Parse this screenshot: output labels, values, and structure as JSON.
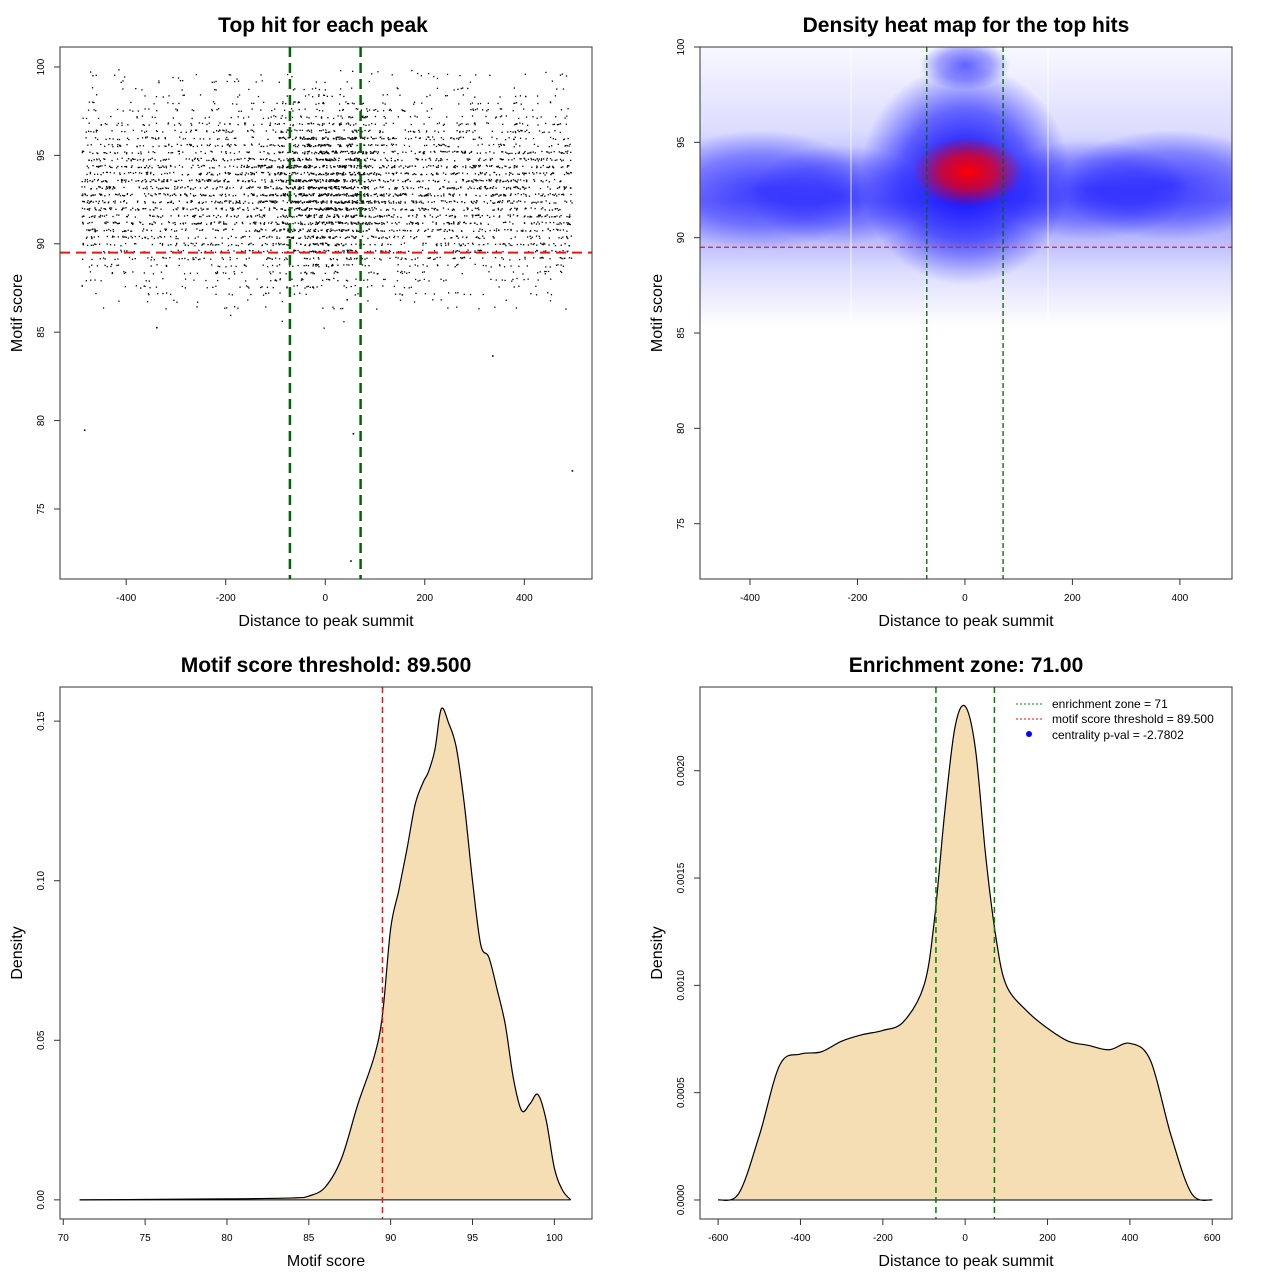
{
  "chart_data": [
    {
      "type": "scatter",
      "title": "Top hit for each peak",
      "xlabel": "Distance to peak summit",
      "ylabel": "Motif score",
      "xlim": [
        -533,
        536
      ],
      "ylim": [
        71.04,
        101.13
      ],
      "xticks": [
        -400,
        -200,
        0,
        200,
        400
      ],
      "yticks": [
        75,
        80,
        85,
        90,
        95,
        100
      ],
      "points_summary": {
        "x_range": [
          -490,
          495
        ],
        "y_center": 93,
        "y_spread": 2.8,
        "dense_center_x": 0
      },
      "outliers": [
        {
          "x": -485,
          "y": 79.5
        },
        {
          "x": 55,
          "y": 79.3
        },
        {
          "x": 495,
          "y": 77.2
        },
        {
          "x": 50,
          "y": 72.1
        },
        {
          "x": -340,
          "y": 85.3
        },
        {
          "x": 335,
          "y": 83.7
        }
      ],
      "vlines": [
        -71,
        71
      ],
      "hline": 89.5,
      "colors": {
        "points": "#000000",
        "vlines": "#006400",
        "hline": "#e31a1c"
      }
    },
    {
      "type": "heatmap",
      "title": "Density heat map for the top hits",
      "xlabel": "Distance to peak summit",
      "ylabel": "Motif score",
      "xlim": [
        -493,
        497
      ],
      "ylim": [
        72.1,
        100
      ],
      "xticks": [
        -400,
        -200,
        0,
        200,
        400
      ],
      "yticks": [
        75,
        80,
        85,
        90,
        95,
        100
      ],
      "peak": {
        "x": 5,
        "y": 93.5
      },
      "vlines": [
        -71,
        71
      ],
      "hline": 89.5,
      "colors": {
        "low": "#ffffff",
        "mid": "#0000ff",
        "high": "#ff0000",
        "vlines": "#006400",
        "hline": "#e31a1c"
      }
    },
    {
      "type": "area",
      "title": "Motif score threshold: 89.500",
      "xlabel": "Motif score",
      "ylabel": "Density",
      "xlim": [
        69.8,
        102.3
      ],
      "ylim": [
        -0.006,
        0.1607
      ],
      "xticks": [
        70,
        75,
        80,
        85,
        90,
        95,
        100
      ],
      "yticks": [
        "0.00",
        "0.05",
        "0.10",
        "0.15"
      ],
      "x": [
        71,
        80,
        84,
        85,
        86,
        87,
        88,
        89,
        89.5,
        90,
        90.5,
        91,
        91.5,
        92,
        92.3,
        92.7,
        93,
        93.2,
        93.5,
        94,
        94.5,
        95,
        95.5,
        96,
        96.5,
        97,
        97.5,
        98,
        98.5,
        99,
        99.5,
        100,
        100.5,
        101
      ],
      "y": [
        0,
        0.0003,
        0.0006,
        0.0012,
        0.004,
        0.013,
        0.03,
        0.045,
        0.058,
        0.085,
        0.097,
        0.11,
        0.124,
        0.131,
        0.134,
        0.141,
        0.152,
        0.154,
        0.15,
        0.142,
        0.124,
        0.1,
        0.08,
        0.076,
        0.066,
        0.055,
        0.038,
        0.028,
        0.03,
        0.033,
        0.025,
        0.01,
        0.003,
        0
      ],
      "vline": 89.5,
      "colors": {
        "fill": "#f5deb3",
        "line": "#000000",
        "vline": "#e31a1c"
      }
    },
    {
      "type": "area",
      "title": "Enrichment zone: 71.00",
      "xlabel": "Distance to peak summit",
      "ylabel": "Density",
      "xlim": [
        -644,
        648
      ],
      "ylim": [
        -8.86e-05,
        0.00239
      ],
      "xticks": [
        -600,
        -400,
        -200,
        0,
        200,
        400,
        600
      ],
      "yticks": [
        "0.0000",
        "0.0005",
        "0.0010",
        "0.0015",
        "0.0020"
      ],
      "x": [
        -600,
        -550,
        -500,
        -450,
        -400,
        -350,
        -300,
        -250,
        -200,
        -150,
        -100,
        -75,
        -50,
        -25,
        0,
        25,
        50,
        75,
        100,
        150,
        200,
        250,
        300,
        350,
        400,
        450,
        500,
        550,
        600
      ],
      "y": [
        0,
        3e-05,
        0.0003,
        0.00063,
        0.00068,
        0.00069,
        0.00074,
        0.00077,
        0.00079,
        0.00083,
        0.001,
        0.0013,
        0.0018,
        0.0022,
        0.0023,
        0.0021,
        0.0016,
        0.00122,
        0.001,
        0.00088,
        0.0008,
        0.00074,
        0.00072,
        0.0007,
        0.00073,
        0.00065,
        0.0003,
        3e-05,
        0
      ],
      "vlines": [
        -71,
        71
      ],
      "legend": {
        "placement": "top-right",
        "entries": [
          "enrichment zone = 71",
          "motif score threshold = 89.500",
          "centrality p-val = -2.7802"
        ]
      },
      "colors": {
        "fill": "#f5deb3",
        "line": "#000000",
        "vlines": "#008000",
        "legend_zone": "#008000",
        "legend_threshold": "#ff0000",
        "legend_pval": "#0000ff"
      }
    }
  ]
}
